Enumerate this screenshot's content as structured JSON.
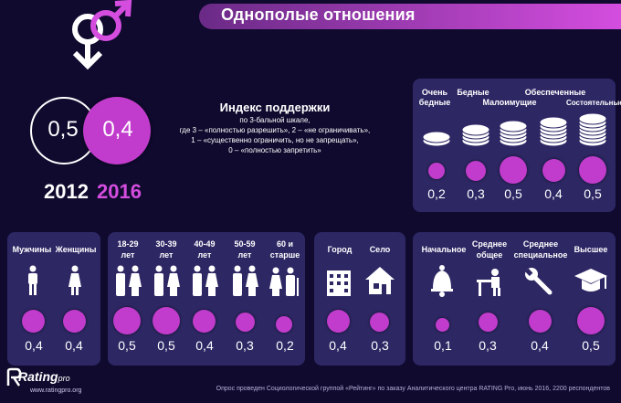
{
  "title": "Однополые отношения",
  "index": {
    "heading": "Индекс поддержки",
    "line1": "по 3-бальной шкале,",
    "line2": "где 3 – «полностью разрешить», 2 – «не ограничивать»,",
    "line3": "1 – «существенно ограничить, но не запрещать»,",
    "line4": "0 – «полностью запретить»",
    "v2012": "0,5",
    "v2016": "0,4",
    "y2012": "2012",
    "y2016": "2016"
  },
  "wealth": {
    "l1a": "Очень",
    "l1b": "бедные",
    "l2": "Бедные",
    "l3": "Малоимущие",
    "l4": "Обеспеченные",
    "l5": "Состоятельные",
    "values": [
      "0,2",
      "0,3",
      "0,5",
      "0,4",
      "0,5"
    ],
    "levels": [
      0.2,
      0.3,
      0.5,
      0.4,
      0.5
    ]
  },
  "gender": {
    "men": "Мужчины",
    "women": "Женщины",
    "values": [
      "0,4",
      "0,4"
    ]
  },
  "age": {
    "a1a": "18-29",
    "a1b": "лет",
    "a2a": "30-39",
    "a2b": "лет",
    "a3a": "40-49",
    "a3b": "лет",
    "a4a": "50-59",
    "a4b": "лет",
    "a5a": "60 и",
    "a5b": "старше",
    "values": [
      "0,5",
      "0,5",
      "0,4",
      "0,3",
      "0,2"
    ]
  },
  "settlement": {
    "city": "Город",
    "village": "Село",
    "values": [
      "0,4",
      "0,3"
    ]
  },
  "education": {
    "e1": "Начальное",
    "e2a": "Среднее",
    "e2b": "общее",
    "e3a": "Среднее",
    "e3b": "специальное",
    "e4": "Высшее",
    "values": [
      "0,1",
      "0,3",
      "0,4",
      "0,5"
    ]
  },
  "footer": {
    "logo_main": "Rating",
    "logo_pro": "pro",
    "url": "www.ratingpro.org",
    "note": "Опрос проведен Социологической группой «Рейтинг» по заказу Аналитического центра RATING Pro, июнь 2016, 2200 респондентов"
  },
  "colors": {
    "background": "#0f0a2e",
    "panel": "#2d2764",
    "accent": "#c13ccc"
  }
}
